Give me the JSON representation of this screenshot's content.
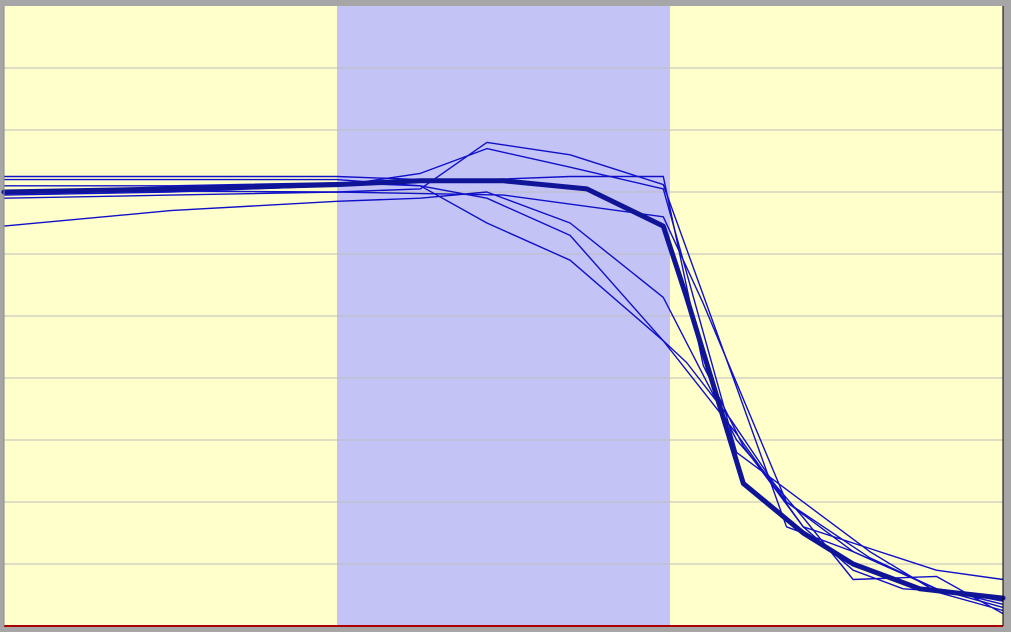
{
  "chart_data": {
    "type": "line",
    "title": "",
    "xlabel": "",
    "ylabel": "",
    "xlim": [
      0,
      3
    ],
    "ylim": [
      0,
      10
    ],
    "grid": true,
    "bands": [
      {
        "x0": 0,
        "x1": 1,
        "color": "#ffffcc"
      },
      {
        "x0": 1,
        "x1": 2,
        "color": "#c3c3f6"
      },
      {
        "x0": 2,
        "x1": 3,
        "color": "#ffffcc"
      }
    ],
    "axis_color": "#aa0000",
    "grid_color": "#bdbdbd",
    "series_color": "#1010c8",
    "mean_color": "#0f1596",
    "series": [
      {
        "x": [
          0,
          0.35,
          1.0,
          1.25,
          1.45,
          1.7,
          1.98,
          2.2,
          2.35,
          2.55,
          2.8,
          3.0
        ],
        "y": [
          7.02,
          7.02,
          7.0,
          7.05,
          7.8,
          7.6,
          7.12,
          3.85,
          1.6,
          1.2,
          0.6,
          0.45
        ]
      },
      {
        "x": [
          0,
          0.5,
          1.0,
          1.5,
          1.98,
          2.1,
          2.35,
          2.6,
          2.8,
          3.0
        ],
        "y": [
          6.9,
          6.95,
          7.0,
          6.95,
          6.6,
          5.2,
          2.0,
          1.1,
          0.6,
          0.4
        ]
      },
      {
        "x": [
          0,
          0.5,
          1.0,
          1.25,
          1.45,
          1.7,
          1.98,
          2.05,
          2.18,
          2.35,
          2.55,
          2.8,
          3.0
        ],
        "y": [
          7.1,
          7.1,
          7.15,
          7.1,
          6.9,
          6.3,
          4.6,
          4.25,
          3.35,
          2.0,
          1.2,
          0.6,
          0.3
        ]
      },
      {
        "x": [
          0,
          0.35,
          1.0,
          1.25,
          1.45,
          1.7,
          1.98,
          2.1,
          2.22,
          2.4,
          2.6,
          2.8,
          3.0
        ],
        "y": [
          7.25,
          7.25,
          7.25,
          7.2,
          7.2,
          7.25,
          7.25,
          4.2,
          2.9,
          1.6,
          1.25,
          0.9,
          0.75
        ]
      },
      {
        "x": [
          0,
          0.5,
          1.0,
          1.25,
          1.45,
          1.7,
          1.98,
          2.2,
          2.4,
          2.55,
          2.8,
          3.0
        ],
        "y": [
          6.45,
          6.7,
          6.85,
          6.9,
          7.0,
          6.5,
          5.3,
          3.0,
          1.75,
          0.75,
          0.8,
          0.2
        ]
      },
      {
        "x": [
          0,
          0.5,
          1.0,
          1.25,
          1.45,
          1.7,
          1.98,
          2.2,
          2.45,
          2.6,
          2.8,
          3.0
        ],
        "y": [
          6.95,
          7.0,
          7.1,
          7.3,
          7.7,
          7.4,
          7.05,
          2.8,
          1.8,
          1.2,
          0.55,
          0.25
        ]
      },
      {
        "x": [
          0,
          0.5,
          1.0,
          1.25,
          1.45,
          1.7,
          1.98,
          2.2,
          2.4,
          2.55,
          2.7,
          2.85,
          3.0
        ],
        "y": [
          7.2,
          7.2,
          7.2,
          7.1,
          6.5,
          5.9,
          4.6,
          3.1,
          1.6,
          0.9,
          0.6,
          0.55,
          0.35
        ]
      }
    ],
    "mean_series": {
      "x": [
        0,
        0.5,
        1.0,
        1.25,
        1.5,
        1.75,
        1.98,
        2.05,
        2.22,
        2.4,
        2.55,
        2.75,
        3.0
      ],
      "y": [
        7.0,
        7.05,
        7.12,
        7.18,
        7.18,
        7.05,
        6.45,
        5.3,
        2.3,
        1.5,
        1.0,
        0.6,
        0.45
      ]
    }
  }
}
